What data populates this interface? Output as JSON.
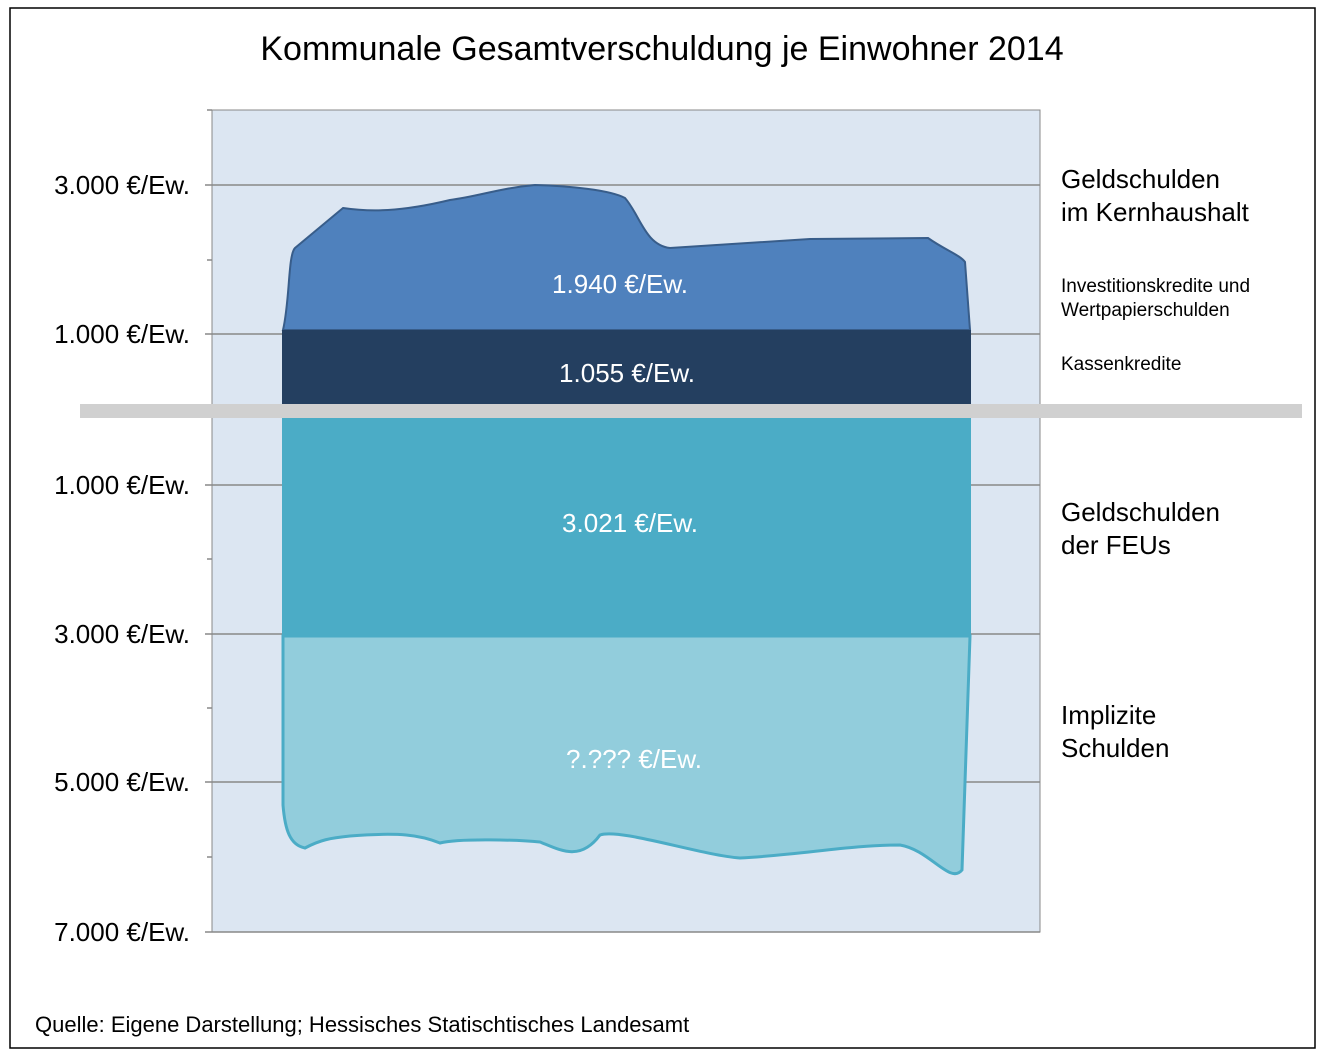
{
  "title": "Kommunale Gesamtverschuldung je Einwohner 2014",
  "axis_labels": [
    "3.000 €/Ew.",
    "1.000 €/Ew.",
    "1.000 €/Ew.",
    "3.000 €/Ew.",
    "5.000 €/Ew.",
    "7.000 €/Ew."
  ],
  "segments": [
    {
      "value_label": "1.940 €/Ew.",
      "legend": "Investitionskredite und\nWertpapierschulden"
    },
    {
      "value_label": "1.055 €/Ew.",
      "legend": "Kassenkredite"
    },
    {
      "value_label": "3.021 €/Ew.",
      "legend": "Geldschulden\nder FEUs"
    },
    {
      "value_label": "?.??? €/Ew.",
      "legend": "Implizite\nSchulden"
    }
  ],
  "group_label": "Geldschulden\nim Kernhaushalt",
  "source": "Quelle: Eigene Darstellung; Hessisches Statischtisches Landesamt"
}
